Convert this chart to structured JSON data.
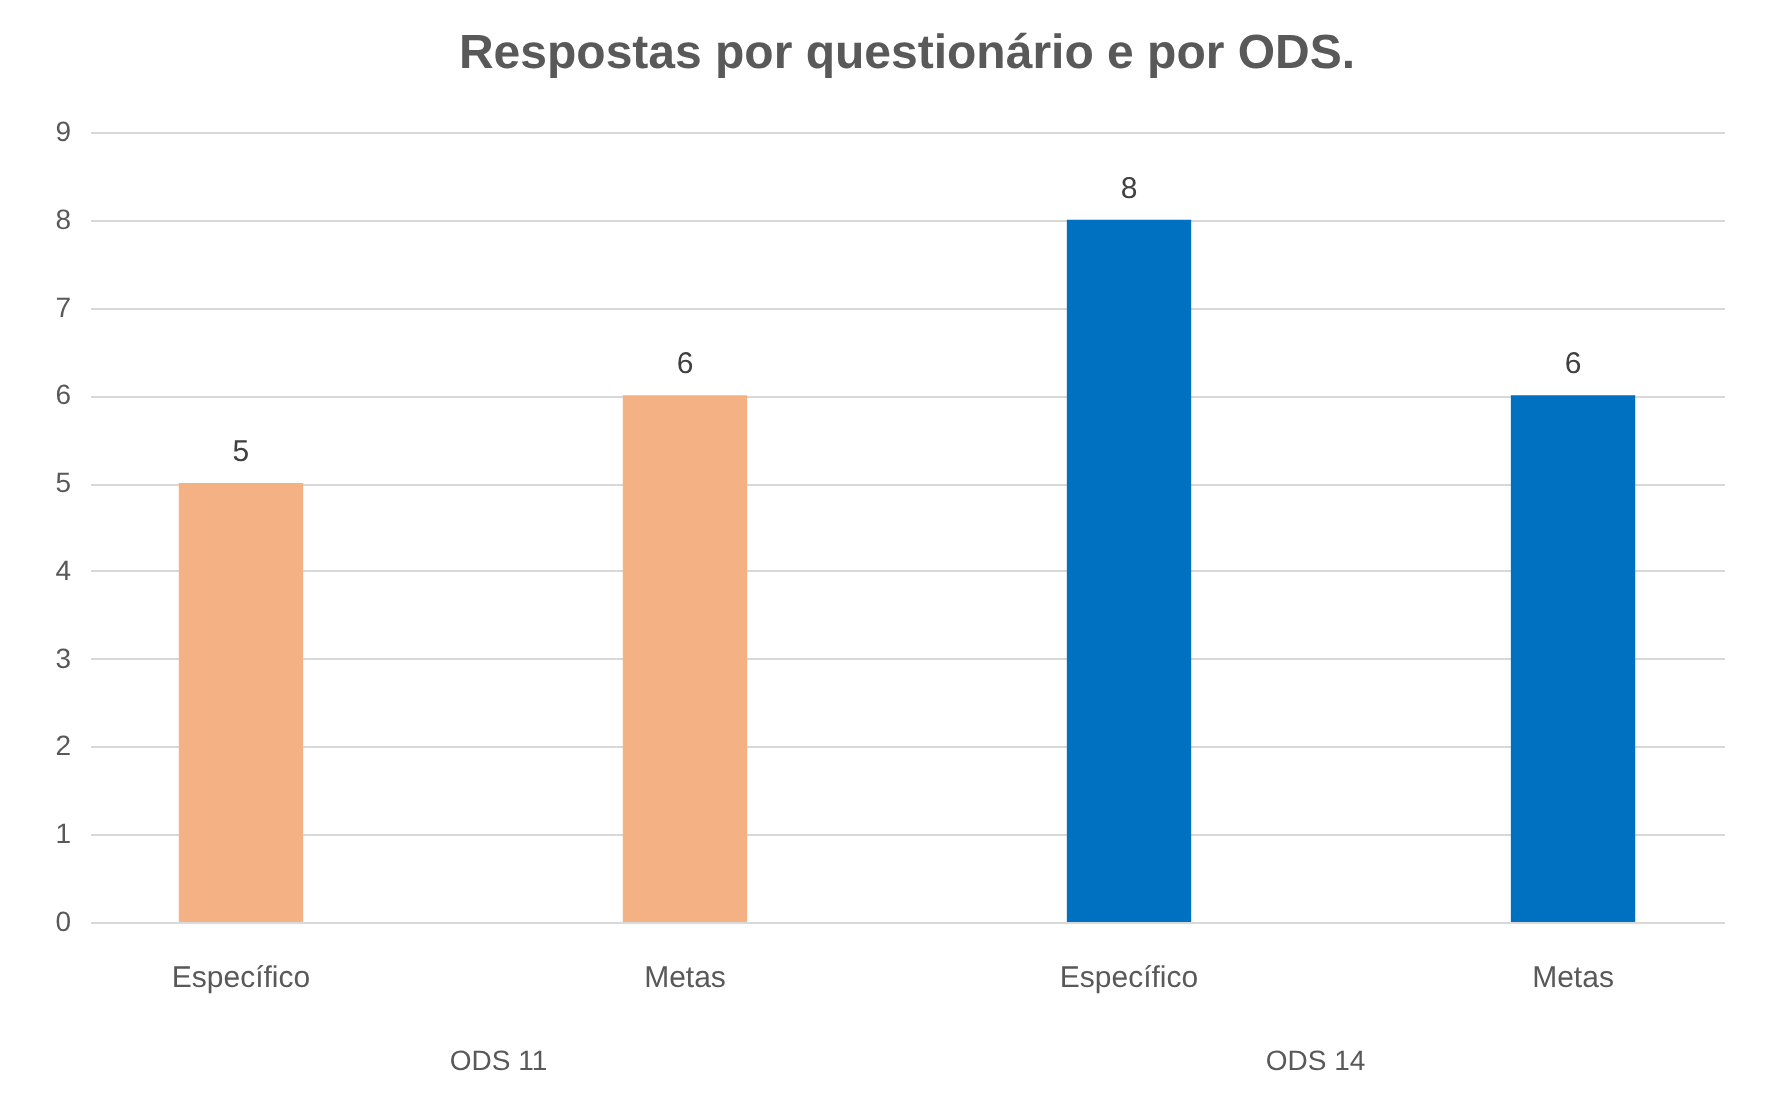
{
  "chart_data": {
    "type": "bar",
    "title": "Respostas por questionário e por ODS.",
    "categories": [
      "Específico",
      "Metas",
      "Específico",
      "Metas"
    ],
    "values": [
      5,
      6,
      8,
      6
    ],
    "colors": [
      "#f4b183",
      "#f4b183",
      "#0070c0",
      "#0070c0"
    ],
    "ylim": [
      0,
      9
    ],
    "yticks": [
      0,
      1,
      2,
      3,
      4,
      5,
      6,
      7,
      8,
      9
    ],
    "grid": "y",
    "data_labels": true,
    "annotations": [
      "ODS 11",
      "ODS 14"
    ]
  }
}
